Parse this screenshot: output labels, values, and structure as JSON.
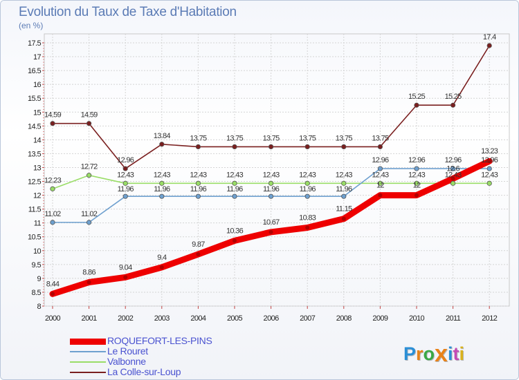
{
  "chart_data": {
    "type": "line",
    "title": "Evolution du Taux de Taxe d'Habitation",
    "ylabel": "(en %)",
    "xlabel": "",
    "x": [
      "2000",
      "2001",
      "2002",
      "2003",
      "2004",
      "2005",
      "2006",
      "2007",
      "2008",
      "2009",
      "2010",
      "2011",
      "2012"
    ],
    "yticks": [
      "8",
      "8.5",
      "9",
      "9.5",
      "10",
      "10.5",
      "11",
      "11.5",
      "12",
      "12.5",
      "13",
      "13.5",
      "14",
      "14.5",
      "15",
      "15.5",
      "16",
      "16.5",
      "17",
      "17.5"
    ],
    "ylim": [
      8,
      17.5
    ],
    "grid": true,
    "legend_position": "bottom-left",
    "series": [
      {
        "name": "La Colle-sur-Loup",
        "color": "#7a1f1f",
        "values": [
          14.59,
          14.59,
          12.96,
          13.84,
          13.75,
          13.75,
          13.75,
          13.75,
          13.75,
          13.75,
          15.25,
          15.25,
          17.4
        ],
        "labels": [
          "14.59",
          "14.59",
          "12.96",
          "13.84",
          "13.75",
          "13.75",
          "13.75",
          "13.75",
          "13.75",
          "13.75",
          "15.25",
          "15.25",
          "17.4"
        ]
      },
      {
        "name": "Valbonne",
        "color": "#99dd66",
        "values": [
          12.23,
          12.72,
          12.43,
          12.43,
          12.43,
          12.43,
          12.43,
          12.43,
          12.43,
          12.43,
          12.43,
          12.43,
          12.43
        ],
        "labels": [
          "12.23",
          "12.72",
          "12.43",
          "12.43",
          "12.43",
          "12.43",
          "12.43",
          "12.43",
          "12.43",
          "12.43",
          "12.43",
          "12.43",
          "12.43"
        ]
      },
      {
        "name": "Le Rouret",
        "color": "#6ea0cf",
        "values": [
          11.02,
          11.02,
          11.96,
          11.96,
          11.96,
          11.96,
          11.96,
          11.96,
          11.96,
          12.96,
          12.96,
          12.96,
          12.96
        ],
        "labels": [
          "11.02",
          "11.02",
          "11.96",
          "11.96",
          "11.96",
          "11.96",
          "11.96",
          "11.96",
          "11.96",
          "12.96",
          "12.96",
          "12.96",
          "12.96"
        ]
      },
      {
        "name": "ROQUEFORT-LES-PINS",
        "color": "#ee0000",
        "values": [
          8.44,
          8.86,
          9.04,
          9.4,
          9.87,
          10.36,
          10.67,
          10.83,
          11.15,
          12,
          12,
          12.6,
          13.23
        ],
        "labels": [
          "8.44",
          "8.86",
          "9.04",
          "9.4",
          "9.87",
          "10.36",
          "10.67",
          "10.83",
          "11.15",
          "12",
          "12",
          "12.6",
          "13.23"
        ]
      }
    ]
  },
  "legend": [
    {
      "name": "ROQUEFORT-LES-PINS",
      "color": "#ee0000",
      "text_color": "#4a52d0",
      "weight": 9
    },
    {
      "name": "Le Rouret",
      "color": "#6ea0cf",
      "text_color": "#4a52d0",
      "weight": 2
    },
    {
      "name": "Valbonne",
      "color": "#99dd66",
      "text_color": "#4a52d0",
      "weight": 2
    },
    {
      "name": "La Colle-sur-Loup",
      "color": "#7a1f1f",
      "text_color": "#4a52d0",
      "weight": 2
    }
  ],
  "logo": {
    "letters": [
      "P",
      "r",
      "o",
      "x",
      "i",
      "t",
      "i"
    ],
    "colors": [
      "#2b8fd6",
      "#e8831a",
      "#3aa845",
      "#e8831a",
      "#2b8fd6",
      "#c44ab6",
      "#d9b21e"
    ]
  }
}
